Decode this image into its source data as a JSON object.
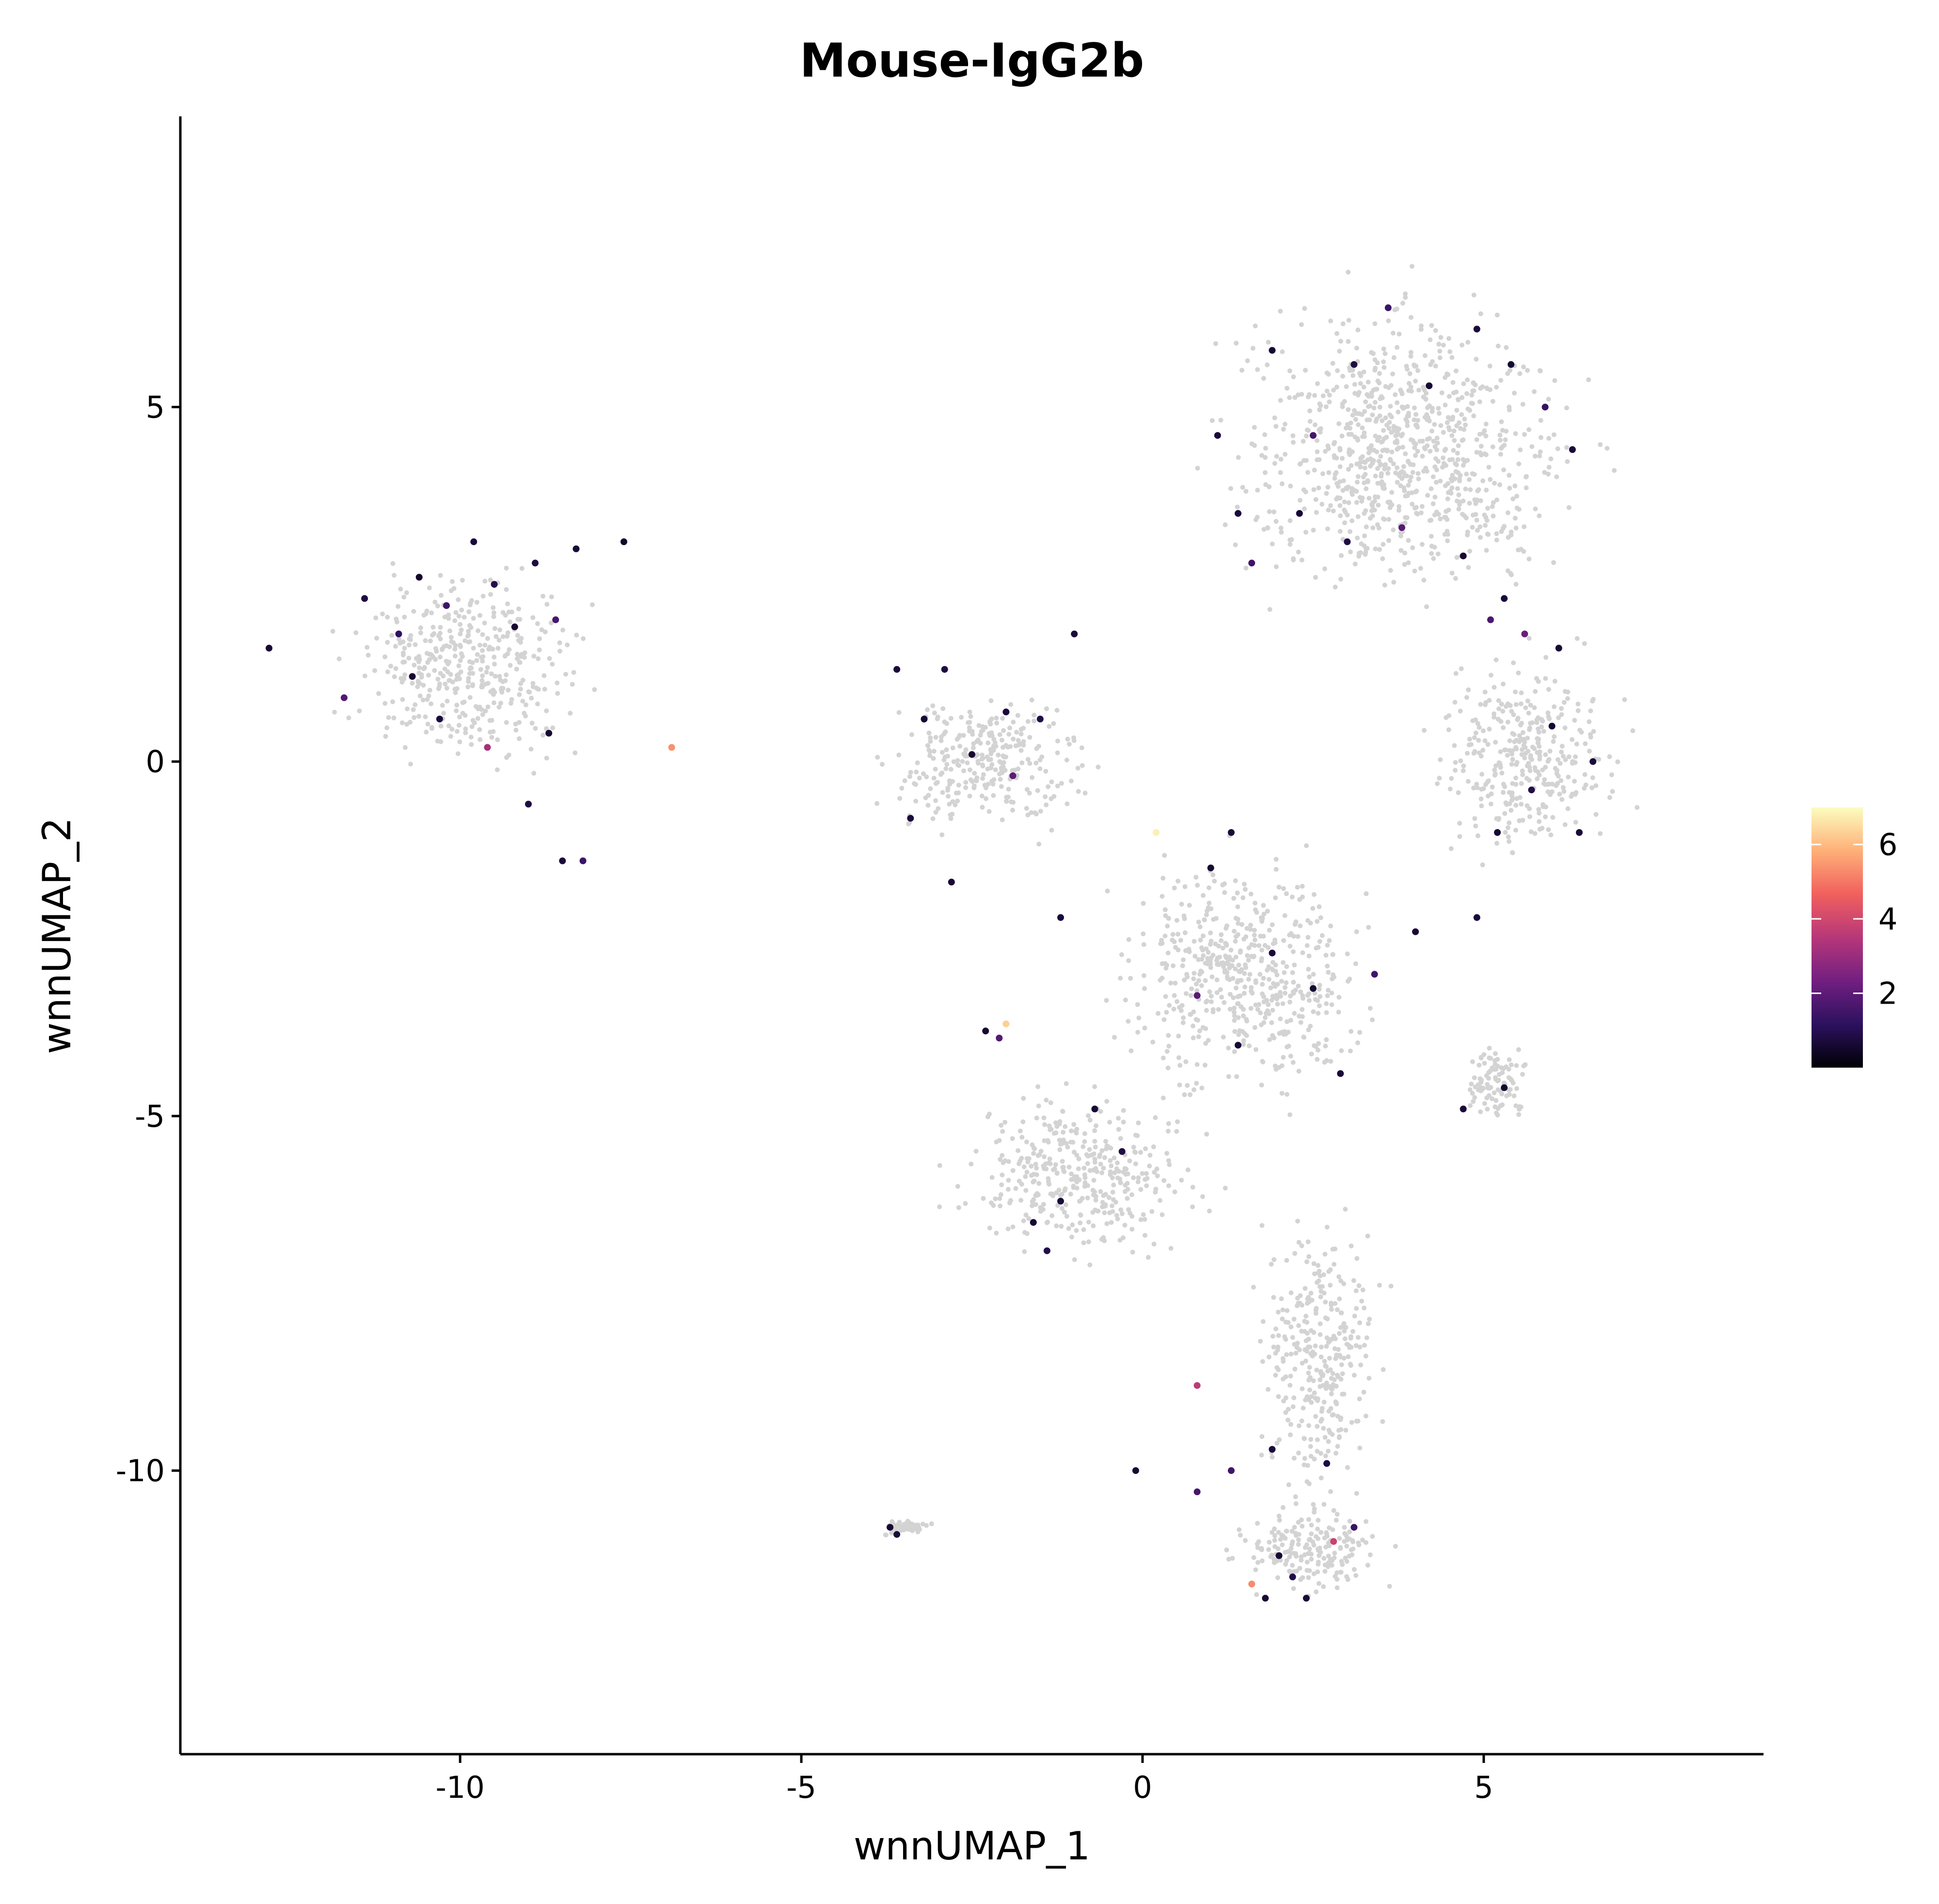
{
  "chart_data": {
    "type": "scatter",
    "title": "Mouse-IgG2b",
    "xlabel": "wnnUMAP_1",
    "ylabel": "wnnUMAP_2",
    "xlim": [
      -14.1,
      9.1
    ],
    "ylim": [
      -14.0,
      9.1
    ],
    "x_ticks": [
      -10,
      -5,
      0,
      5
    ],
    "x_tick_labels": [
      "-10",
      "-5",
      "0",
      "5"
    ],
    "y_ticks": [
      5,
      0,
      -5,
      -10
    ],
    "y_tick_labels": [
      "5",
      "0",
      "-5",
      "-10"
    ],
    "grid": false,
    "background_color": "#d3d3d3",
    "color_scale": {
      "palette": "magma",
      "range": [
        0,
        7
      ],
      "ticks": [
        2,
        4,
        6
      ],
      "tick_labels": [
        "2",
        "4",
        "6"
      ],
      "stops": [
        "#000004",
        "#2c115f",
        "#721f81",
        "#b73779",
        "#f1605d",
        "#feb078",
        "#fcfdbf"
      ]
    },
    "legend_position": "right",
    "clusters": [
      {
        "center": [
          -9.9,
          1.3
        ],
        "spread": [
          1.35,
          1.05
        ]
      },
      {
        "center": [
          -2.3,
          0.0
        ],
        "spread": [
          1.15,
          0.8
        ]
      },
      {
        "center": [
          3.8,
          4.4
        ],
        "spread": [
          2.0,
          1.6
        ]
      },
      {
        "center": [
          5.6,
          0.1
        ],
        "spread": [
          1.0,
          1.1
        ]
      },
      {
        "center": [
          1.5,
          -3.0
        ],
        "spread": [
          1.4,
          1.3
        ]
      },
      {
        "center": [
          -0.9,
          -5.8
        ],
        "spread": [
          1.4,
          0.9
        ]
      },
      {
        "center": [
          2.6,
          -8.4
        ],
        "spread": [
          0.7,
          1.5
        ]
      },
      {
        "center": [
          2.5,
          -11.1
        ],
        "spread": [
          0.9,
          0.55
        ]
      },
      {
        "center": [
          5.2,
          -4.5
        ],
        "spread": [
          0.35,
          0.4
        ]
      },
      {
        "center": [
          -3.5,
          -10.8
        ],
        "spread": [
          0.3,
          0.08
        ]
      }
    ],
    "highlighted_points": [
      {
        "x": -12.8,
        "y": 1.6,
        "value": 0.6
      },
      {
        "x": -11.4,
        "y": 2.3,
        "value": 0.8
      },
      {
        "x": -10.9,
        "y": 1.8,
        "value": 1.2
      },
      {
        "x": -10.6,
        "y": 2.6,
        "value": 0.5
      },
      {
        "x": -10.2,
        "y": 2.2,
        "value": 1.5
      },
      {
        "x": -9.8,
        "y": 3.1,
        "value": 0.7
      },
      {
        "x": -9.5,
        "y": 2.5,
        "value": 0.9
      },
      {
        "x": -9.2,
        "y": 1.9,
        "value": 0.6
      },
      {
        "x": -8.9,
        "y": 2.8,
        "value": 0.8
      },
      {
        "x": -8.6,
        "y": 2.0,
        "value": 1.6
      },
      {
        "x": -8.3,
        "y": 3.0,
        "value": 0.7
      },
      {
        "x": -7.6,
        "y": 3.1,
        "value": 0.5
      },
      {
        "x": -11.7,
        "y": 0.9,
        "value": 1.8
      },
      {
        "x": -10.7,
        "y": 1.2,
        "value": 0.6
      },
      {
        "x": -10.3,
        "y": 0.6,
        "value": 0.7
      },
      {
        "x": -9.6,
        "y": 0.2,
        "value": 3.2
      },
      {
        "x": -9.0,
        "y": -0.6,
        "value": 0.8
      },
      {
        "x": -8.7,
        "y": 0.4,
        "value": 0.6
      },
      {
        "x": -8.5,
        "y": -1.4,
        "value": 0.7
      },
      {
        "x": -8.2,
        "y": -1.4,
        "value": 1.4
      },
      {
        "x": -6.9,
        "y": 0.2,
        "value": 5.4
      },
      {
        "x": -3.6,
        "y": 1.3,
        "value": 0.7
      },
      {
        "x": -3.2,
        "y": 0.6,
        "value": 0.6
      },
      {
        "x": -2.9,
        "y": 1.3,
        "value": 0.8
      },
      {
        "x": -2.5,
        "y": 0.1,
        "value": 0.6
      },
      {
        "x": -2.0,
        "y": 0.7,
        "value": 0.7
      },
      {
        "x": -1.5,
        "y": 0.6,
        "value": 0.9
      },
      {
        "x": -1.9,
        "y": -0.2,
        "value": 2.0
      },
      {
        "x": -3.4,
        "y": -0.8,
        "value": 0.7
      },
      {
        "x": -2.8,
        "y": -1.7,
        "value": 0.6
      },
      {
        "x": -1.0,
        "y": 1.8,
        "value": 0.7
      },
      {
        "x": 0.2,
        "y": -1.0,
        "value": 6.8
      },
      {
        "x": -2.0,
        "y": -3.7,
        "value": 6.3
      },
      {
        "x": -2.1,
        "y": -3.9,
        "value": 1.8
      },
      {
        "x": -2.3,
        "y": -3.8,
        "value": 0.6
      },
      {
        "x": -1.2,
        "y": -2.2,
        "value": 0.7
      },
      {
        "x": -0.7,
        "y": -4.9,
        "value": 0.6
      },
      {
        "x": -0.3,
        "y": -5.5,
        "value": 0.8
      },
      {
        "x": -1.2,
        "y": -6.2,
        "value": 0.7
      },
      {
        "x": -1.6,
        "y": -6.5,
        "value": 0.6
      },
      {
        "x": -1.4,
        "y": -6.9,
        "value": 0.9
      },
      {
        "x": 1.4,
        "y": -4.0,
        "value": 0.6
      },
      {
        "x": 1.9,
        "y": -2.7,
        "value": 0.7
      },
      {
        "x": 2.5,
        "y": -3.2,
        "value": 0.6
      },
      {
        "x": 2.9,
        "y": -4.4,
        "value": 0.7
      },
      {
        "x": 3.4,
        "y": -3.0,
        "value": 1.5
      },
      {
        "x": 4.0,
        "y": -2.4,
        "value": 0.6
      },
      {
        "x": 4.9,
        "y": -2.2,
        "value": 0.7
      },
      {
        "x": 1.0,
        "y": -1.5,
        "value": 0.6
      },
      {
        "x": 0.8,
        "y": -3.3,
        "value": 1.9
      },
      {
        "x": 1.3,
        "y": -1.0,
        "value": 0.7
      },
      {
        "x": 1.1,
        "y": 4.6,
        "value": 0.7
      },
      {
        "x": 1.9,
        "y": 5.8,
        "value": 0.6
      },
      {
        "x": 2.5,
        "y": 4.6,
        "value": 1.6
      },
      {
        "x": 3.1,
        "y": 5.6,
        "value": 0.8
      },
      {
        "x": 3.6,
        "y": 6.4,
        "value": 1.4
      },
      {
        "x": 4.2,
        "y": 5.3,
        "value": 0.6
      },
      {
        "x": 4.9,
        "y": 6.1,
        "value": 0.7
      },
      {
        "x": 5.4,
        "y": 5.6,
        "value": 0.6
      },
      {
        "x": 5.9,
        "y": 5.0,
        "value": 1.3
      },
      {
        "x": 6.3,
        "y": 4.4,
        "value": 0.7
      },
      {
        "x": 2.3,
        "y": 3.5,
        "value": 0.6
      },
      {
        "x": 3.0,
        "y": 3.1,
        "value": 0.8
      },
      {
        "x": 3.8,
        "y": 3.3,
        "value": 1.9
      },
      {
        "x": 4.7,
        "y": 2.9,
        "value": 0.6
      },
      {
        "x": 5.3,
        "y": 2.3,
        "value": 0.7
      },
      {
        "x": 5.1,
        "y": 2.0,
        "value": 1.7
      },
      {
        "x": 5.6,
        "y": 1.8,
        "value": 2.2
      },
      {
        "x": 6.1,
        "y": 1.6,
        "value": 0.6
      },
      {
        "x": 1.4,
        "y": 3.5,
        "value": 0.7
      },
      {
        "x": 1.6,
        "y": 2.8,
        "value": 1.5
      },
      {
        "x": 6.0,
        "y": 0.5,
        "value": 0.6
      },
      {
        "x": 6.6,
        "y": 0.0,
        "value": 0.7
      },
      {
        "x": 5.7,
        "y": -0.4,
        "value": 0.9
      },
      {
        "x": 5.2,
        "y": -1.0,
        "value": 0.6
      },
      {
        "x": 6.4,
        "y": -1.0,
        "value": 0.7
      },
      {
        "x": 5.3,
        "y": -4.6,
        "value": 0.6
      },
      {
        "x": 4.7,
        "y": -4.9,
        "value": 0.7
      },
      {
        "x": 0.8,
        "y": -8.8,
        "value": 3.6
      },
      {
        "x": 1.3,
        "y": -10.0,
        "value": 1.5
      },
      {
        "x": 0.8,
        "y": -10.3,
        "value": 1.6
      },
      {
        "x": -0.1,
        "y": -10.0,
        "value": 0.6
      },
      {
        "x": 1.9,
        "y": -9.7,
        "value": 0.7
      },
      {
        "x": 2.7,
        "y": -9.9,
        "value": 0.8
      },
      {
        "x": 1.6,
        "y": -11.6,
        "value": 5.3
      },
      {
        "x": 2.0,
        "y": -11.2,
        "value": 0.6
      },
      {
        "x": 2.4,
        "y": -11.8,
        "value": 0.7
      },
      {
        "x": 2.8,
        "y": -11.0,
        "value": 3.8
      },
      {
        "x": 1.8,
        "y": -11.8,
        "value": 0.6
      },
      {
        "x": 2.2,
        "y": -11.5,
        "value": 0.9
      },
      {
        "x": 3.1,
        "y": -10.8,
        "value": 1.4
      },
      {
        "x": -3.7,
        "y": -10.8,
        "value": 0.6
      },
      {
        "x": -3.6,
        "y": -10.9,
        "value": 0.7
      }
    ]
  }
}
